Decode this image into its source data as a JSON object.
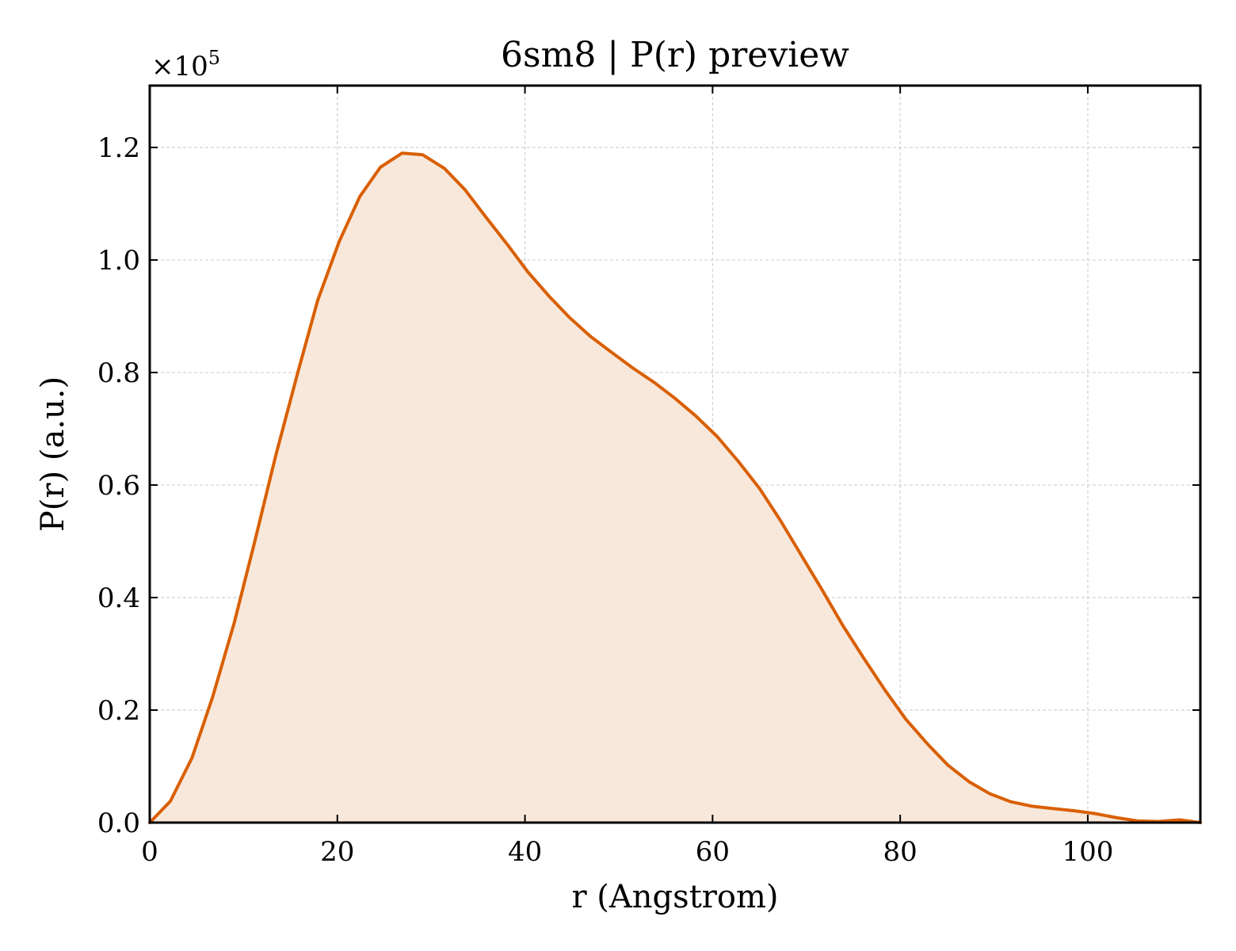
{
  "chart_data": {
    "type": "area",
    "title": "6sm8 | P(r) preview",
    "xlabel": "r (Angstrom)",
    "ylabel": "P(r) (a.u.)",
    "y_multiplier": "×10",
    "y_multiplier_exponent": "5",
    "xlim": [
      0,
      112
    ],
    "ylim": [
      0,
      1.31
    ],
    "y_scale_factor": 100000,
    "xticks": [
      0,
      20,
      40,
      60,
      80,
      100
    ],
    "xtick_labels": [
      "0",
      "20",
      "40",
      "60",
      "80",
      "100"
    ],
    "yticks": [
      0.0,
      0.2,
      0.4,
      0.6,
      0.8,
      1.0,
      1.2
    ],
    "ytick_labels": [
      "0.0",
      "0.2",
      "0.4",
      "0.6",
      "0.8",
      "1.0",
      "1.2"
    ],
    "grid": true,
    "line_color": "#d95f02",
    "fill_color": "#f8e8dc",
    "series": [
      {
        "x": [
          0,
          2.2,
          4.5,
          6.7,
          9.0,
          11.2,
          13.4,
          15.7,
          17.9,
          20.2,
          22.4,
          24.6,
          26.9,
          29.1,
          31.4,
          33.6,
          35.8,
          38.1,
          40.3,
          42.6,
          44.8,
          47.0,
          49.3,
          51.5,
          53.8,
          56.0,
          58.2,
          60.5,
          62.7,
          65.0,
          67.2,
          69.4,
          71.7,
          73.9,
          76.2,
          78.4,
          80.6,
          82.9,
          85.1,
          87.4,
          89.6,
          91.8,
          94.1,
          96.3,
          98.6,
          100.8,
          103.0,
          105.3,
          107.5,
          109.8,
          112.0
        ],
        "y": [
          0.0,
          0.038,
          0.115,
          0.223,
          0.355,
          0.5,
          0.65,
          0.795,
          0.928,
          1.033,
          1.113,
          1.165,
          1.19,
          1.187,
          1.163,
          1.125,
          1.077,
          1.028,
          0.979,
          0.935,
          0.897,
          0.864,
          0.835,
          0.808,
          0.782,
          0.754,
          0.723,
          0.686,
          0.643,
          0.594,
          0.538,
          0.477,
          0.413,
          0.35,
          0.29,
          0.235,
          0.184,
          0.14,
          0.102,
          0.072,
          0.051,
          0.037,
          0.029,
          0.025,
          0.021,
          0.016,
          0.009,
          0.003,
          0.002,
          0.005,
          0.0
        ]
      }
    ]
  }
}
